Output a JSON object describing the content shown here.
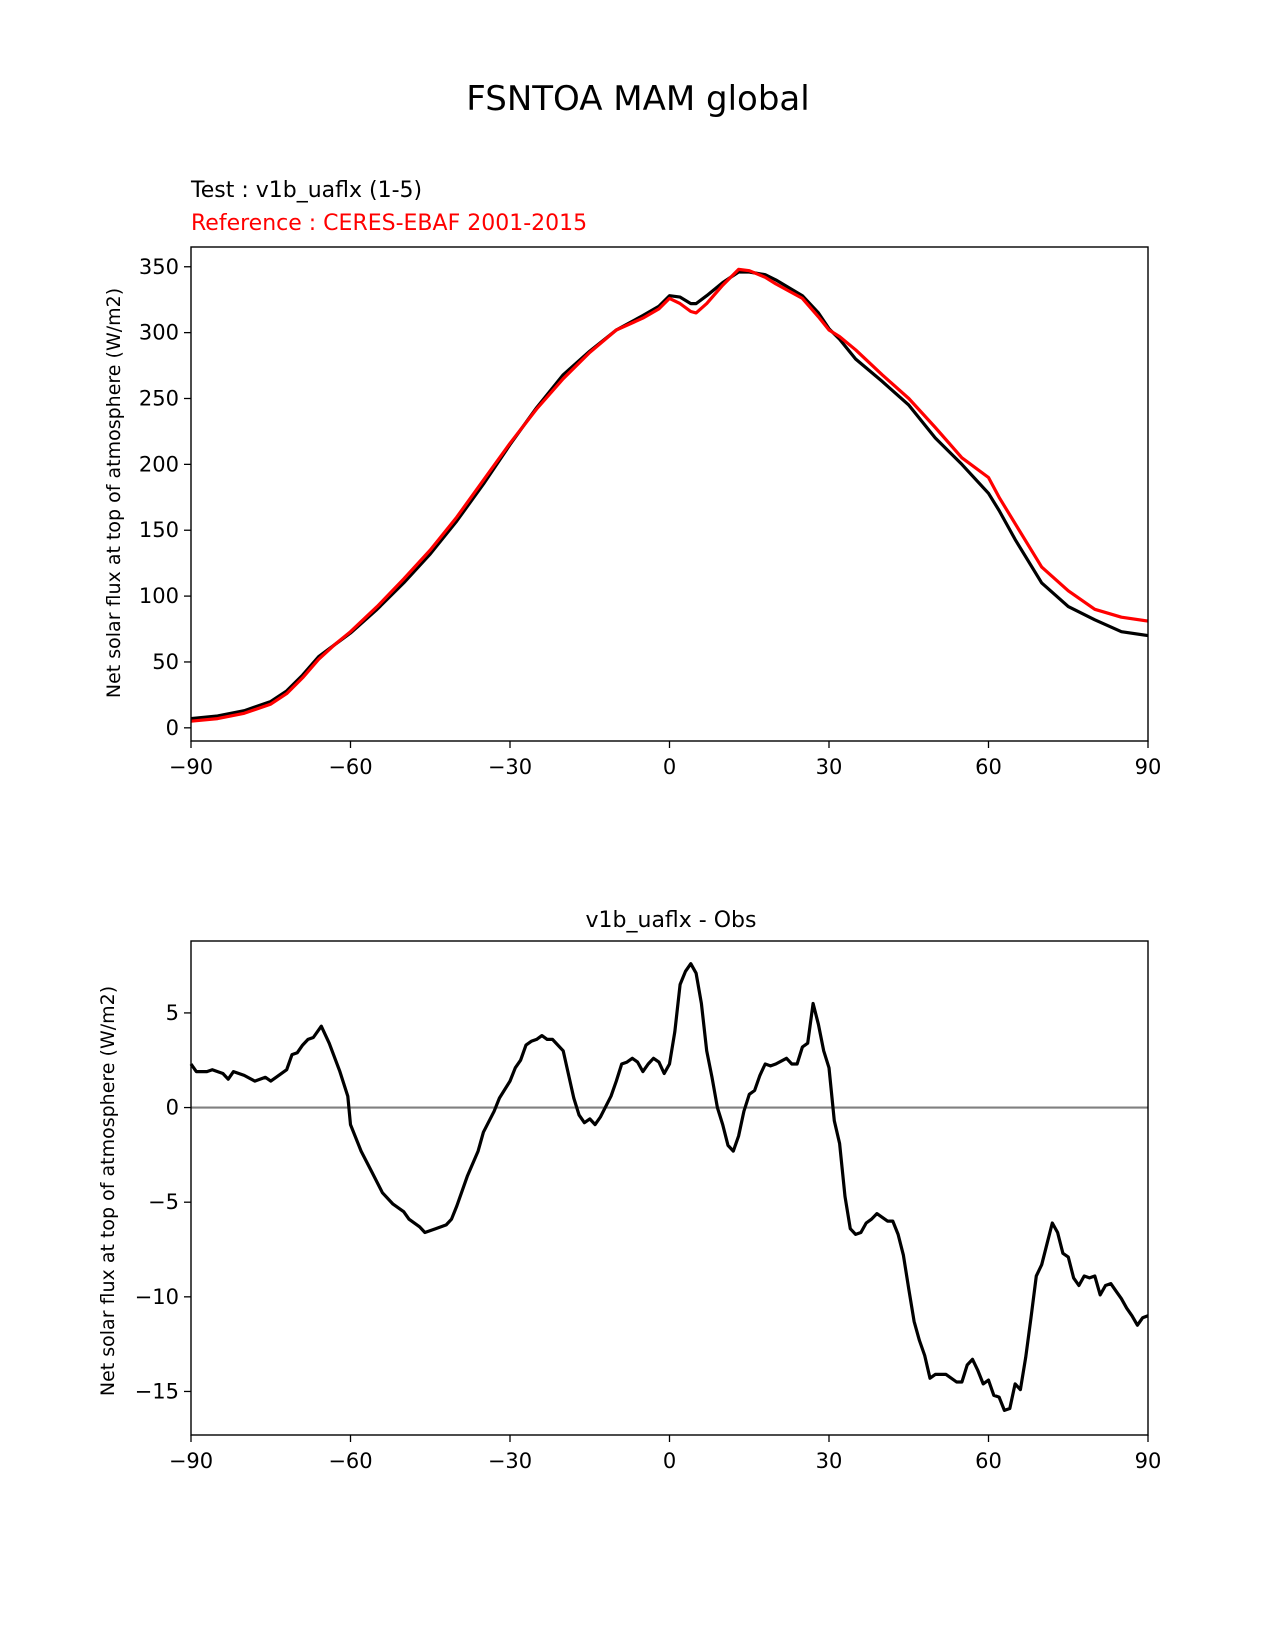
{
  "figure": {
    "suptitle": "FSNTOA MAM global"
  },
  "chart_data": [
    {
      "type": "line",
      "test_label": "Test : v1b_uaflx (1-5)",
      "reference_label": "Reference : CERES-EBAF 2001-2015",
      "xlabel": "",
      "ylabel": "Net solar flux at top of atmosphere (W/m2)",
      "xlim": [
        -90,
        90
      ],
      "ylim": [
        -10,
        365
      ],
      "xticks": [
        -90,
        -60,
        -30,
        0,
        30,
        60,
        90
      ],
      "xtick_labels": [
        "−90",
        "−60",
        "−30",
        "0",
        "30",
        "60",
        "90"
      ],
      "yticks": [
        0,
        50,
        100,
        150,
        200,
        250,
        300,
        350
      ],
      "ytick_labels": [
        "0",
        "50",
        "100",
        "150",
        "200",
        "250",
        "300",
        "350"
      ],
      "colors": {
        "test": "#000000",
        "reference": "#ff0000"
      },
      "series": [
        {
          "key": "test",
          "color": "#000000",
          "points": [
            [
              -90,
              7
            ],
            [
              -85,
              9
            ],
            [
              -80,
              13
            ],
            [
              -75,
              20
            ],
            [
              -72,
              28
            ],
            [
              -69,
              40
            ],
            [
              -66,
              54
            ],
            [
              -63,
              63
            ],
            [
              -60,
              72
            ],
            [
              -55,
              90
            ],
            [
              -50,
              110
            ],
            [
              -45,
              132
            ],
            [
              -40,
              157
            ],
            [
              -35,
              185
            ],
            [
              -30,
              215
            ],
            [
              -25,
              243
            ],
            [
              -20,
              268
            ],
            [
              -15,
              286
            ],
            [
              -10,
              302
            ],
            [
              -5,
              313
            ],
            [
              -2,
              320
            ],
            [
              0,
              328
            ],
            [
              2,
              327
            ],
            [
              4,
              322
            ],
            [
              5,
              322
            ],
            [
              7,
              328
            ],
            [
              10,
              338
            ],
            [
              13,
              346
            ],
            [
              15,
              346
            ],
            [
              18,
              344
            ],
            [
              20,
              340
            ],
            [
              25,
              328
            ],
            [
              28,
              315
            ],
            [
              30,
              303
            ],
            [
              32,
              295
            ],
            [
              35,
              280
            ],
            [
              40,
              263
            ],
            [
              45,
              245
            ],
            [
              50,
              220
            ],
            [
              55,
              200
            ],
            [
              60,
              178
            ],
            [
              62,
              165
            ],
            [
              65,
              143
            ],
            [
              70,
              110
            ],
            [
              75,
              92
            ],
            [
              80,
              82
            ],
            [
              85,
              73
            ],
            [
              90,
              70
            ]
          ]
        },
        {
          "key": "reference",
          "color": "#ff0000",
          "points": [
            [
              -90,
              5
            ],
            [
              -85,
              7
            ],
            [
              -80,
              11
            ],
            [
              -75,
              18
            ],
            [
              -72,
              26
            ],
            [
              -69,
              38
            ],
            [
              -66,
              52
            ],
            [
              -63,
              63
            ],
            [
              -60,
              73
            ],
            [
              -55,
              92
            ],
            [
              -50,
              113
            ],
            [
              -45,
              135
            ],
            [
              -40,
              160
            ],
            [
              -35,
              188
            ],
            [
              -30,
              216
            ],
            [
              -25,
              242
            ],
            [
              -20,
              265
            ],
            [
              -15,
              285
            ],
            [
              -10,
              302
            ],
            [
              -5,
              311
            ],
            [
              -2,
              318
            ],
            [
              0,
              326
            ],
            [
              2,
              322
            ],
            [
              4,
              316
            ],
            [
              5,
              315
            ],
            [
              7,
              322
            ],
            [
              10,
              336
            ],
            [
              13,
              348
            ],
            [
              15,
              347
            ],
            [
              18,
              342
            ],
            [
              20,
              337
            ],
            [
              25,
              326
            ],
            [
              28,
              312
            ],
            [
              30,
              302
            ],
            [
              32,
              297
            ],
            [
              35,
              287
            ],
            [
              40,
              268
            ],
            [
              45,
              250
            ],
            [
              50,
              228
            ],
            [
              55,
              205
            ],
            [
              60,
              190
            ],
            [
              62,
              175
            ],
            [
              65,
              155
            ],
            [
              70,
              122
            ],
            [
              75,
              104
            ],
            [
              80,
              90
            ],
            [
              85,
              84
            ],
            [
              90,
              81
            ]
          ]
        }
      ]
    },
    {
      "type": "line",
      "title": "v1b_uaflx - Obs",
      "xlabel": "",
      "ylabel": "Net solar flux at top of atmosphere (W/m2)",
      "xlim": [
        -90,
        90
      ],
      "ylim": [
        -17.3,
        8.8
      ],
      "xticks": [
        -90,
        -60,
        -30,
        0,
        30,
        60,
        90
      ],
      "xtick_labels": [
        "−90",
        "−60",
        "−30",
        "0",
        "30",
        "60",
        "90"
      ],
      "yticks": [
        5,
        0,
        -5,
        -10,
        -15
      ],
      "ytick_labels": [
        "5",
        "0",
        "−5",
        "−10",
        "−15"
      ],
      "zero_line_color": "#808080",
      "series": [
        {
          "key": "difference",
          "color": "#000000",
          "points": [
            [
              -90,
              2.3
            ],
            [
              -89,
              1.9
            ],
            [
              -87,
              1.9
            ],
            [
              -86,
              2.0
            ],
            [
              -84,
              1.8
            ],
            [
              -83,
              1.5
            ],
            [
              -82,
              1.9
            ],
            [
              -80,
              1.7
            ],
            [
              -78,
              1.4
            ],
            [
              -76,
              1.6
            ],
            [
              -75,
              1.4
            ],
            [
              -74,
              1.6
            ],
            [
              -72,
              2.0
            ],
            [
              -71,
              2.8
            ],
            [
              -70,
              2.9
            ],
            [
              -69,
              3.3
            ],
            [
              -68,
              3.6
            ],
            [
              -67,
              3.7
            ],
            [
              -65.5,
              4.3
            ],
            [
              -64,
              3.4
            ],
            [
              -62,
              1.9
            ],
            [
              -60.5,
              0.6
            ],
            [
              -60,
              -0.9
            ],
            [
              -58,
              -2.3
            ],
            [
              -56,
              -3.4
            ],
            [
              -54,
              -4.5
            ],
            [
              -52,
              -5.1
            ],
            [
              -50,
              -5.5
            ],
            [
              -49,
              -5.9
            ],
            [
              -47,
              -6.3
            ],
            [
              -46,
              -6.6
            ],
            [
              -44,
              -6.4
            ],
            [
              -42,
              -6.2
            ],
            [
              -41,
              -5.9
            ],
            [
              -40,
              -5.2
            ],
            [
              -38,
              -3.6
            ],
            [
              -36,
              -2.3
            ],
            [
              -35,
              -1.3
            ],
            [
              -33,
              -0.2
            ],
            [
              -32,
              0.5
            ],
            [
              -30,
              1.4
            ],
            [
              -29,
              2.1
            ],
            [
              -28,
              2.5
            ],
            [
              -27,
              3.3
            ],
            [
              -26,
              3.5
            ],
            [
              -25,
              3.6
            ],
            [
              -24,
              3.8
            ],
            [
              -23,
              3.6
            ],
            [
              -22,
              3.6
            ],
            [
              -20,
              3.0
            ],
            [
              -18,
              0.5
            ],
            [
              -17,
              -0.4
            ],
            [
              -16,
              -0.8
            ],
            [
              -15,
              -0.6
            ],
            [
              -14,
              -0.9
            ],
            [
              -13,
              -0.5
            ],
            [
              -11,
              0.6
            ],
            [
              -10,
              1.4
            ],
            [
              -9,
              2.3
            ],
            [
              -8,
              2.4
            ],
            [
              -7,
              2.6
            ],
            [
              -6,
              2.4
            ],
            [
              -5,
              1.9
            ],
            [
              -4,
              2.3
            ],
            [
              -3,
              2.6
            ],
            [
              -2,
              2.4
            ],
            [
              -1,
              1.8
            ],
            [
              0,
              2.3
            ],
            [
              1,
              4.0
            ],
            [
              2,
              6.5
            ],
            [
              3,
              7.2
            ],
            [
              4,
              7.6
            ],
            [
              5,
              7.1
            ],
            [
              6,
              5.5
            ],
            [
              7,
              3.0
            ],
            [
              8,
              1.6
            ],
            [
              9,
              0.0
            ],
            [
              10,
              -0.9
            ],
            [
              11,
              -2.0
            ],
            [
              12,
              -2.3
            ],
            [
              13,
              -1.5
            ],
            [
              14,
              -0.2
            ],
            [
              15,
              0.7
            ],
            [
              16,
              0.9
            ],
            [
              17,
              1.7
            ],
            [
              18,
              2.3
            ],
            [
              19,
              2.2
            ],
            [
              20,
              2.3
            ],
            [
              22,
              2.6
            ],
            [
              23,
              2.3
            ],
            [
              24,
              2.3
            ],
            [
              25,
              3.2
            ],
            [
              26,
              3.4
            ],
            [
              27,
              5.5
            ],
            [
              28,
              4.4
            ],
            [
              29,
              3.0
            ],
            [
              30,
              2.1
            ],
            [
              31,
              -0.7
            ],
            [
              32,
              -1.9
            ],
            [
              33,
              -4.7
            ],
            [
              34,
              -6.4
            ],
            [
              35,
              -6.7
            ],
            [
              36,
              -6.6
            ],
            [
              37,
              -6.1
            ],
            [
              38,
              -5.9
            ],
            [
              39,
              -5.6
            ],
            [
              40,
              -5.8
            ],
            [
              41,
              -6.0
            ],
            [
              42,
              -6.0
            ],
            [
              43,
              -6.7
            ],
            [
              44,
              -7.8
            ],
            [
              45,
              -9.6
            ],
            [
              46,
              -11.3
            ],
            [
              47,
              -12.3
            ],
            [
              48,
              -13.1
            ],
            [
              49,
              -14.3
            ],
            [
              50,
              -14.1
            ],
            [
              52,
              -14.1
            ],
            [
              54,
              -14.5
            ],
            [
              55,
              -14.5
            ],
            [
              56,
              -13.6
            ],
            [
              57,
              -13.3
            ],
            [
              58,
              -13.9
            ],
            [
              59,
              -14.6
            ],
            [
              60,
              -14.4
            ],
            [
              61,
              -15.2
            ],
            [
              62,
              -15.3
            ],
            [
              63,
              -16.0
            ],
            [
              64,
              -15.9
            ],
            [
              65,
              -14.6
            ],
            [
              66,
              -14.9
            ],
            [
              67,
              -13.2
            ],
            [
              68,
              -11.1
            ],
            [
              69,
              -8.9
            ],
            [
              70,
              -8.3
            ],
            [
              71,
              -7.2
            ],
            [
              72,
              -6.1
            ],
            [
              73,
              -6.6
            ],
            [
              74,
              -7.7
            ],
            [
              75,
              -7.9
            ],
            [
              76,
              -9.0
            ],
            [
              77,
              -9.4
            ],
            [
              78,
              -8.9
            ],
            [
              79,
              -9.0
            ],
            [
              80,
              -8.9
            ],
            [
              81,
              -9.9
            ],
            [
              82,
              -9.4
            ],
            [
              83,
              -9.3
            ],
            [
              84,
              -9.7
            ],
            [
              85,
              -10.1
            ],
            [
              86,
              -10.6
            ],
            [
              87,
              -11.0
            ],
            [
              88,
              -11.5
            ],
            [
              89,
              -11.1
            ],
            [
              90,
              -11.0
            ]
          ]
        }
      ]
    }
  ]
}
